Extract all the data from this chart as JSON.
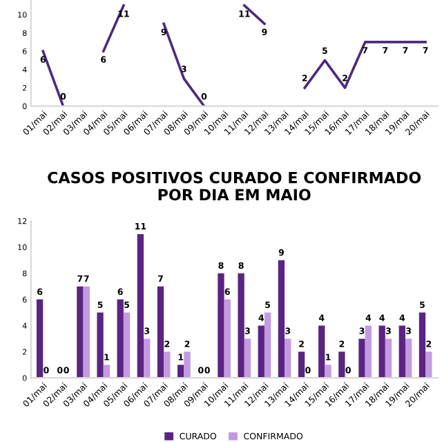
{
  "chart_data": [
    {
      "type": "line",
      "categories": [
        "01/mai",
        "02/mai",
        "03/mai",
        "04/mai",
        "05/mai",
        "06/mai",
        "07/mai",
        "08/mai",
        "09/mai",
        "10/mai",
        "11/mai",
        "12/mai",
        "13/mai",
        "14/mai",
        "15/mai",
        "16/mai",
        "17/mai",
        "18/mai",
        "19/mai",
        "20/mai"
      ],
      "series": [
        {
          "color": "#4b2a7f",
          "values": [
            6,
            0,
            null,
            6,
            11,
            null,
            9,
            3,
            0,
            null,
            11,
            9,
            null,
            2,
            5,
            2,
            7,
            7,
            7,
            7
          ]
        }
      ],
      "ylim": [
        0,
        11.6
      ],
      "yticks": [
        0,
        2,
        4,
        6,
        8,
        10
      ],
      "data_labels": true,
      "grid": false,
      "legend": false,
      "marker": "none",
      "line_style": "solid"
    },
    {
      "type": "bar",
      "title": "CASOS POSITIVOS CURADO E CONFIRMADO POR DIA EM MAIO",
      "categories": [
        "01/mai",
        "02/mai",
        "03/mai",
        "04/mai",
        "05/mai",
        "06/mai",
        "07/mai",
        "08/mai",
        "09/mai",
        "10/mai",
        "11/mai",
        "12/mai",
        "13/mai",
        "14/mai",
        "15/mai",
        "16/mai",
        "17/mai",
        "18/mai",
        "19/mai",
        "20/mai"
      ],
      "series": [
        {
          "name": "CURADO",
          "color": "#5b2382",
          "values": [
            6,
            0,
            7,
            5,
            6,
            11,
            7,
            1,
            0,
            8,
            8,
            4,
            9,
            2,
            4,
            2,
            3,
            4,
            4,
            5
          ]
        },
        {
          "name": "CONFIRMADO",
          "color": "#c39be0",
          "values": [
            0,
            0,
            7,
            1,
            5,
            3,
            2,
            2,
            0,
            6,
            3,
            5,
            3,
            0,
            1,
            0,
            4,
            3,
            3,
            2
          ]
        }
      ],
      "ylim": [
        0,
        12
      ],
      "yticks": [
        0,
        2,
        4,
        6,
        8,
        10,
        12
      ],
      "data_labels": true,
      "grid": false,
      "legend": "bottom"
    }
  ]
}
